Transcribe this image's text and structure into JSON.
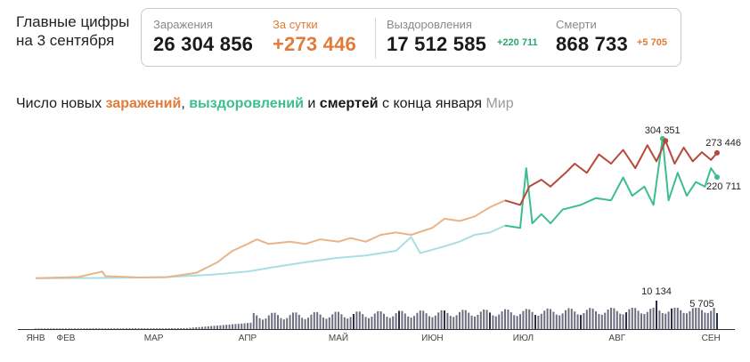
{
  "headline": {
    "line1": "Главные цифры",
    "line2": "на 3 сентября"
  },
  "stats": {
    "infections": {
      "label": "Заражения",
      "value": "26 304 856"
    },
    "daily": {
      "label": "За сутки",
      "value": "+273 446"
    },
    "recoveries": {
      "label": "Выздоровления",
      "value": "17 512 585",
      "delta": "+220 711"
    },
    "deaths": {
      "label": "Смерти",
      "value": "868 733",
      "delta": "+5 705"
    }
  },
  "chart_title": {
    "prefix": "Число новых ",
    "infections_word": "заражений",
    "sep": ", ",
    "recoveries_word": "выздоровлений",
    "and": " и ",
    "deaths_word": "смертей",
    "suffix": " с конца января",
    "region": "Мир"
  },
  "colors": {
    "infections_early": "#e8b48a",
    "infections_late": "#b54a3c",
    "recoveries_early": "#a8dfe3",
    "recoveries_late": "#3cbf8c",
    "deaths_bars": "#6b6f80",
    "deaths_highlight": "#2b2f45",
    "axis": "#333333"
  },
  "chart_data": {
    "type": "line",
    "x_range": [
      "2020-01-22",
      "2020-09-03"
    ],
    "months": [
      {
        "label": "ЯНВ",
        "date": "2020-01-22"
      },
      {
        "label": "ФЕВ",
        "date": "2020-02-01"
      },
      {
        "label": "МАР",
        "date": "2020-03-01"
      },
      {
        "label": "АПР",
        "date": "2020-04-01"
      },
      {
        "label": "МАЙ",
        "date": "2020-05-01"
      },
      {
        "label": "ИЮН",
        "date": "2020-06-01"
      },
      {
        "label": "ИЮЛ",
        "date": "2020-07-01"
      },
      {
        "label": "АВГ",
        "date": "2020-08-01"
      },
      {
        "label": "СЕН",
        "date": "2020-09-01"
      }
    ],
    "ylim": [
      0,
      310000
    ],
    "infections": [
      [
        "2020-01-22",
        500
      ],
      [
        "2020-02-05",
        3000
      ],
      [
        "2020-02-13",
        15000
      ],
      [
        "2020-02-14",
        5000
      ],
      [
        "2020-02-25",
        2000
      ],
      [
        "2020-03-05",
        2500
      ],
      [
        "2020-03-15",
        12000
      ],
      [
        "2020-03-22",
        35000
      ],
      [
        "2020-03-27",
        60000
      ],
      [
        "2020-04-01",
        75000
      ],
      [
        "2020-04-04",
        85000
      ],
      [
        "2020-04-08",
        75000
      ],
      [
        "2020-04-15",
        80000
      ],
      [
        "2020-04-20",
        75000
      ],
      [
        "2020-04-25",
        85000
      ],
      [
        "2020-05-01",
        80000
      ],
      [
        "2020-05-05",
        88000
      ],
      [
        "2020-05-10",
        80000
      ],
      [
        "2020-05-15",
        95000
      ],
      [
        "2020-05-20",
        100000
      ],
      [
        "2020-05-25",
        95000
      ],
      [
        "2020-06-01",
        110000
      ],
      [
        "2020-06-05",
        130000
      ],
      [
        "2020-06-10",
        125000
      ],
      [
        "2020-06-15",
        135000
      ],
      [
        "2020-06-20",
        155000
      ],
      [
        "2020-06-25",
        170000
      ],
      [
        "2020-06-30",
        160000
      ],
      [
        "2020-07-03",
        200000
      ],
      [
        "2020-07-07",
        215000
      ],
      [
        "2020-07-10",
        200000
      ],
      [
        "2020-07-15",
        230000
      ],
      [
        "2020-07-18",
        250000
      ],
      [
        "2020-07-22",
        230000
      ],
      [
        "2020-07-26",
        270000
      ],
      [
        "2020-07-30",
        250000
      ],
      [
        "2020-08-03",
        280000
      ],
      [
        "2020-08-07",
        240000
      ],
      [
        "2020-08-11",
        290000
      ],
      [
        "2020-08-14",
        255000
      ],
      [
        "2020-08-17",
        300000
      ],
      [
        "2020-08-20",
        250000
      ],
      [
        "2020-08-23",
        285000
      ],
      [
        "2020-08-26",
        255000
      ],
      [
        "2020-08-29",
        275000
      ],
      [
        "2020-09-01",
        258000
      ],
      [
        "2020-09-03",
        273446
      ]
    ],
    "recoveries": [
      [
        "2020-01-22",
        100
      ],
      [
        "2020-02-15",
        1000
      ],
      [
        "2020-03-05",
        3000
      ],
      [
        "2020-03-20",
        8000
      ],
      [
        "2020-04-01",
        15000
      ],
      [
        "2020-04-10",
        25000
      ],
      [
        "2020-04-20",
        35000
      ],
      [
        "2020-05-01",
        45000
      ],
      [
        "2020-05-10",
        50000
      ],
      [
        "2020-05-20",
        60000
      ],
      [
        "2020-05-25",
        90000
      ],
      [
        "2020-05-28",
        55000
      ],
      [
        "2020-06-05",
        70000
      ],
      [
        "2020-06-10",
        80000
      ],
      [
        "2020-06-15",
        95000
      ],
      [
        "2020-06-20",
        100000
      ],
      [
        "2020-06-25",
        115000
      ],
      [
        "2020-06-30",
        110000
      ],
      [
        "2020-07-02",
        240000
      ],
      [
        "2020-07-04",
        120000
      ],
      [
        "2020-07-07",
        140000
      ],
      [
        "2020-07-10",
        120000
      ],
      [
        "2020-07-14",
        150000
      ],
      [
        "2020-07-20",
        160000
      ],
      [
        "2020-07-25",
        175000
      ],
      [
        "2020-07-30",
        170000
      ],
      [
        "2020-08-03",
        220000
      ],
      [
        "2020-08-06",
        180000
      ],
      [
        "2020-08-10",
        200000
      ],
      [
        "2020-08-13",
        160000
      ],
      [
        "2020-08-16",
        304351
      ],
      [
        "2020-08-18",
        170000
      ],
      [
        "2020-08-21",
        230000
      ],
      [
        "2020-08-24",
        180000
      ],
      [
        "2020-08-27",
        210000
      ],
      [
        "2020-08-30",
        200000
      ],
      [
        "2020-09-01",
        240000
      ],
      [
        "2020-09-03",
        220711
      ]
    ],
    "deaths": {
      "max_label": "10 134",
      "max_value": 10134,
      "last_label": "5 705",
      "last_value": 5705
    },
    "annotations": {
      "recoveries_peak": "304 351",
      "infections_last": "273 446",
      "recoveries_last": "220 711"
    }
  }
}
